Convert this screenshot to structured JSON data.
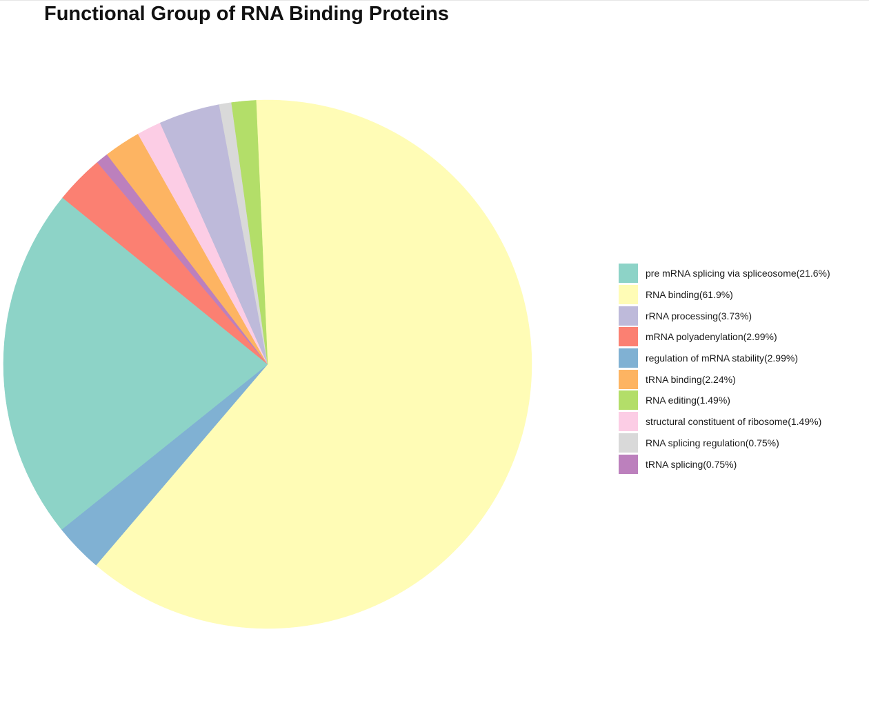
{
  "chart_data": {
    "type": "pie",
    "title": "Functional Group of RNA Binding Proteins",
    "slices": [
      {
        "label": "RNA binding(61.9%)",
        "value": 61.9,
        "color": "#FFFCB6"
      },
      {
        "label": "regulation of mRNA stability(2.99%)",
        "value": 2.99,
        "color": "#80B1D3"
      },
      {
        "label": "pre mRNA splicing via spliceosome(21.6%)",
        "value": 21.6,
        "color": "#8DD3C7"
      },
      {
        "label": "mRNA polyadenylation(2.99%)",
        "value": 2.99,
        "color": "#FB8072"
      },
      {
        "label": "tRNA splicing(0.75%)",
        "value": 0.75,
        "color": "#BC80BD"
      },
      {
        "label": "tRNA binding(2.24%)",
        "value": 2.24,
        "color": "#FDB462"
      },
      {
        "label": "structural constituent of ribosome(1.49%)",
        "value": 1.49,
        "color": "#FCCDE5"
      },
      {
        "label": "rRNA processing(3.73%)",
        "value": 3.73,
        "color": "#BEBADA"
      },
      {
        "label": "RNA splicing regulation(0.75%)",
        "value": 0.75,
        "color": "#D9D9D9"
      },
      {
        "label": "RNA editing(1.49%)",
        "value": 1.49,
        "color": "#B3DE69"
      }
    ],
    "legend": [
      {
        "label": "pre mRNA splicing via spliceosome(21.6%)",
        "color": "#8DD3C7"
      },
      {
        "label": "RNA binding(61.9%)",
        "color": "#FFFCB6"
      },
      {
        "label": "rRNA processing(3.73%)",
        "color": "#BEBADA"
      },
      {
        "label": "mRNA polyadenylation(2.99%)",
        "color": "#FB8072"
      },
      {
        "label": "regulation of mRNA stability(2.99%)",
        "color": "#80B1D3"
      },
      {
        "label": "tRNA binding(2.24%)",
        "color": "#FDB462"
      },
      {
        "label": "RNA editing(1.49%)",
        "color": "#B3DE69"
      },
      {
        "label": "structural constituent of ribosome(1.49%)",
        "color": "#FCCDE5"
      },
      {
        "label": "RNA splicing regulation(0.75%)",
        "color": "#D9D9D9"
      },
      {
        "label": "tRNA splicing(0.75%)",
        "color": "#BC80BD"
      }
    ],
    "legend_position": "right"
  }
}
